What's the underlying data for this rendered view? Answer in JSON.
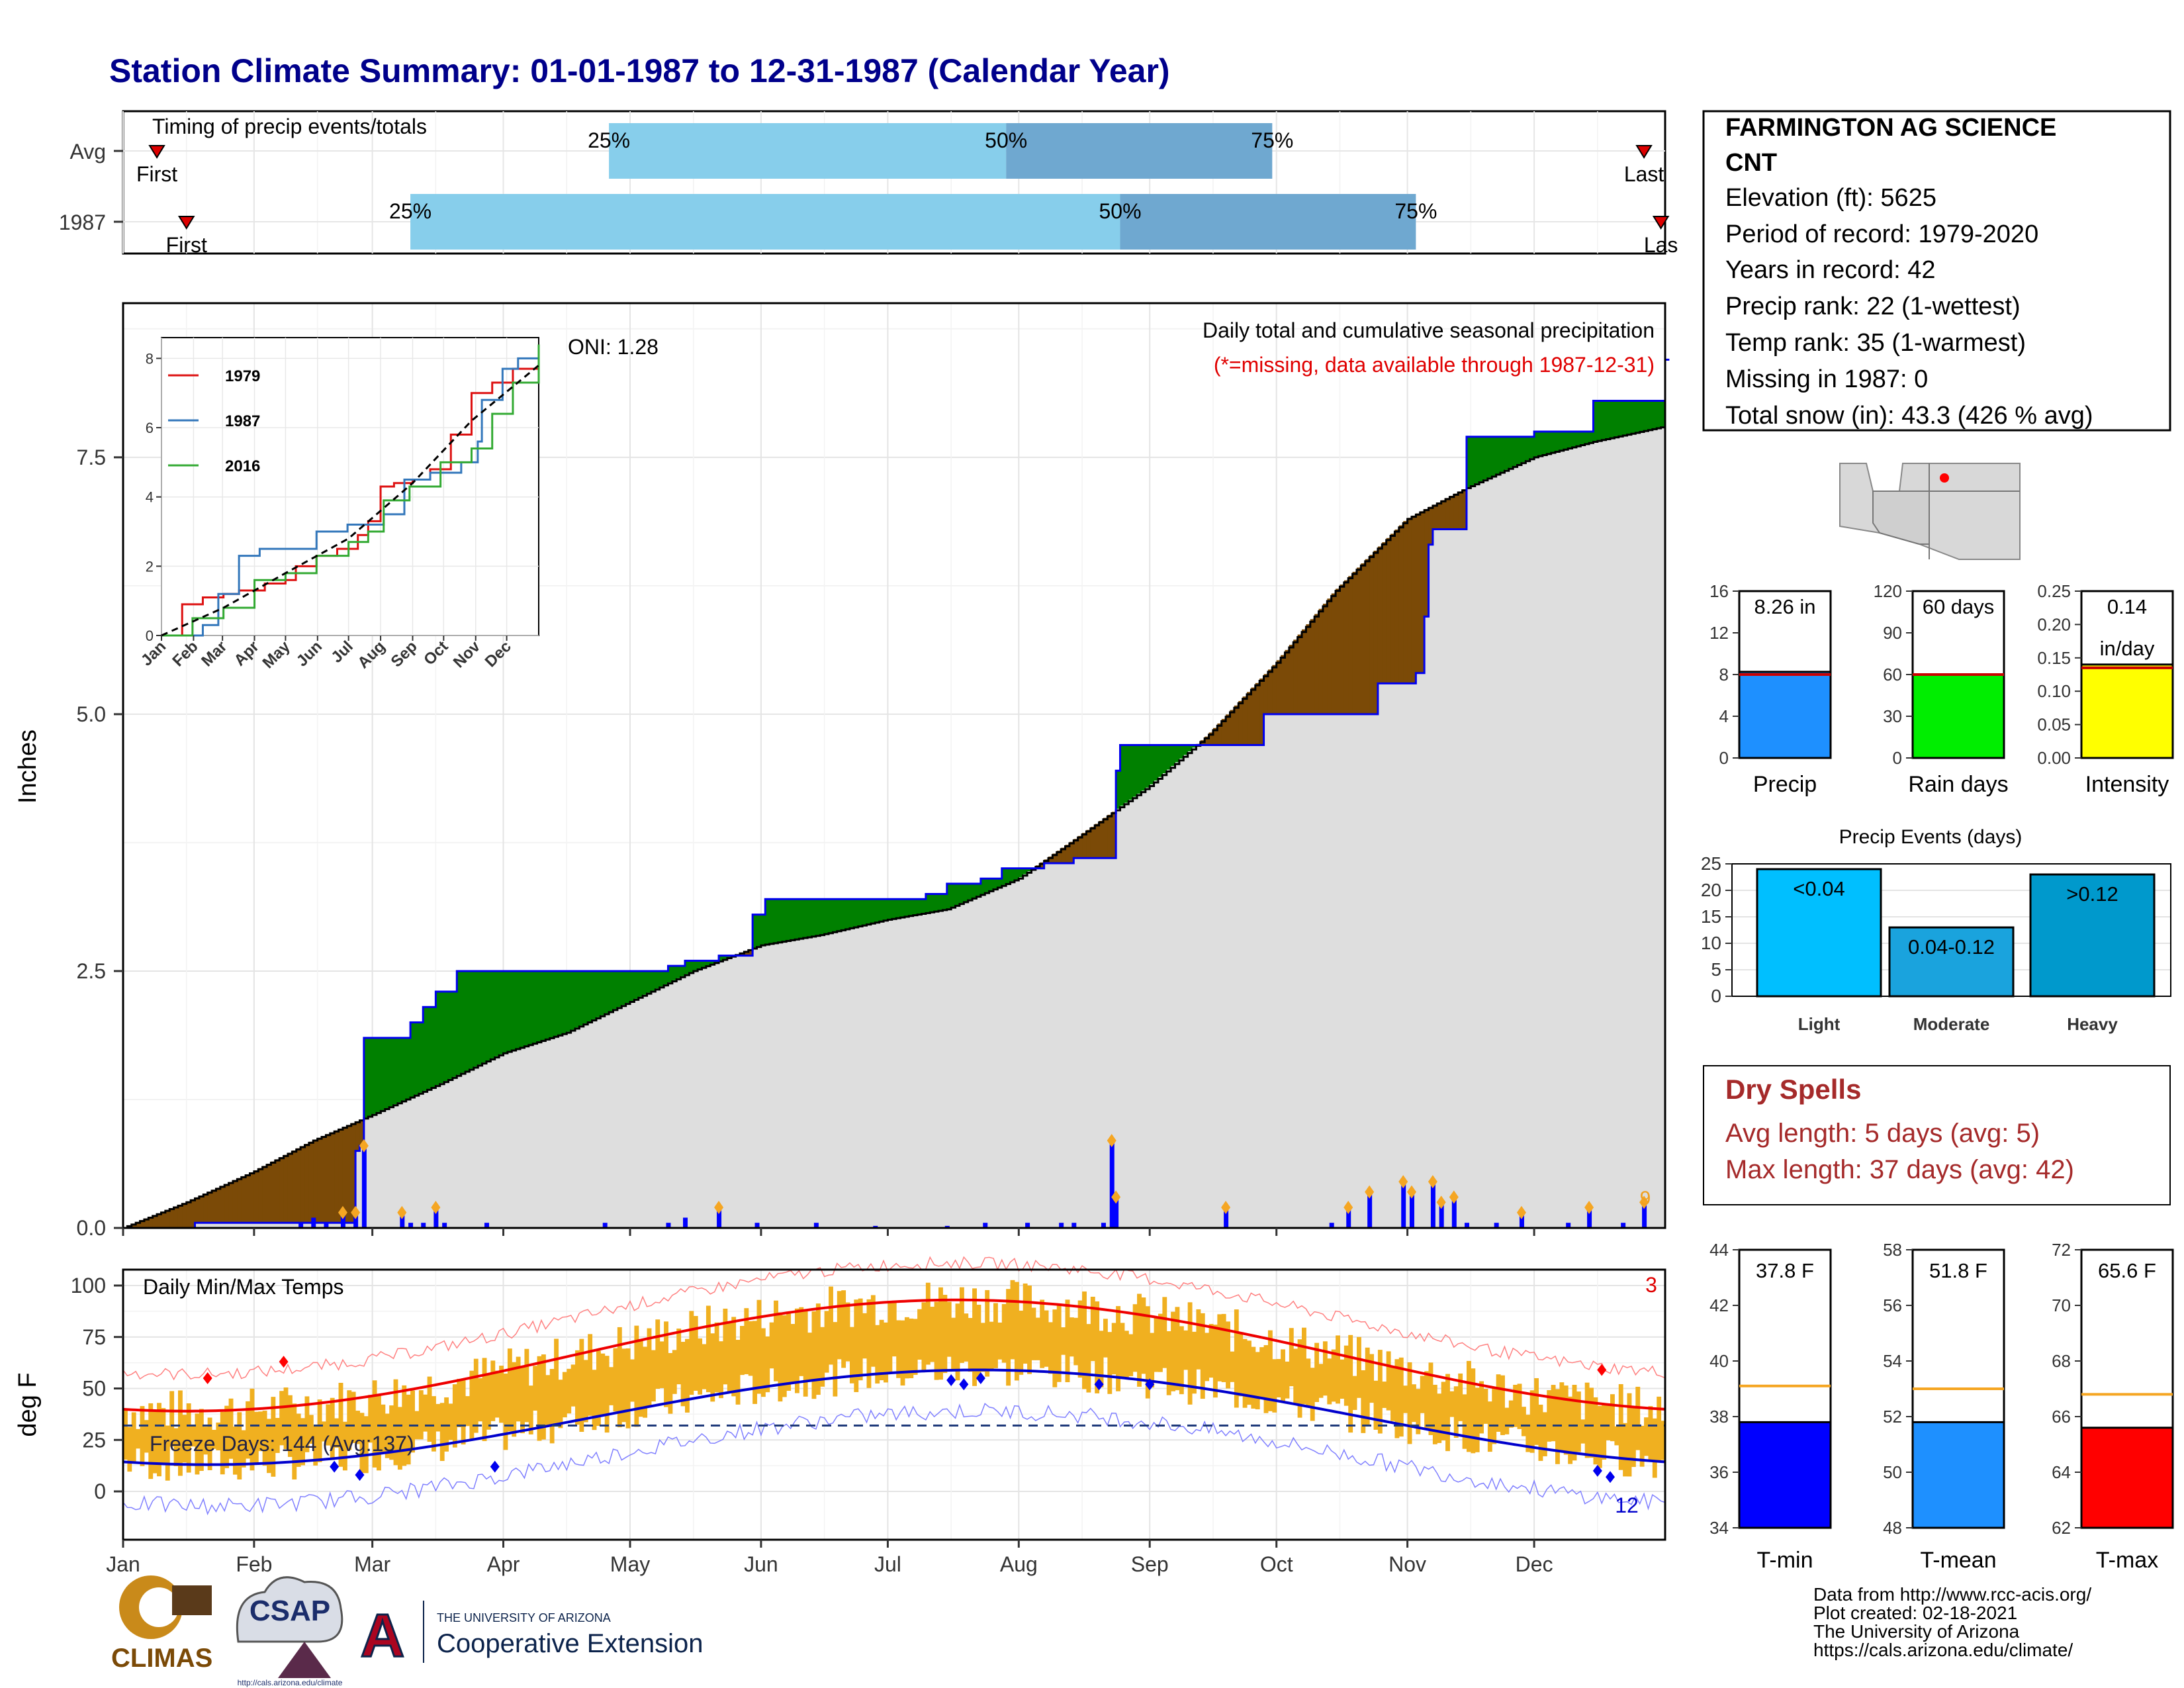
{
  "title": "Station Climate Summary: 01-01-1987 to 12-31-1987 (Calendar Year)",
  "months": [
    "Jan",
    "Feb",
    "Mar",
    "Apr",
    "May",
    "Jun",
    "Jul",
    "Aug",
    "Sep",
    "Oct",
    "Nov",
    "Dec"
  ],
  "timing": {
    "title": "Timing of precip events/totals",
    "rows": [
      {
        "label": "Avg",
        "first_doy": 8,
        "q25_doy": 115,
        "q50_doy": 209,
        "q75_doy": 272,
        "last_doy": 360,
        "first_label": "First",
        "last_label": "Last"
      },
      {
        "label": "1987",
        "first_doy": 15,
        "q25_doy": 68,
        "q50_doy": 236,
        "q75_doy": 306,
        "last_doy": 364,
        "first_label": "First",
        "last_label": "Las"
      }
    ],
    "q25_label": "25%",
    "q50_label": "50%",
    "q75_label": "75%"
  },
  "precip_panel": {
    "ylabel": "Inches",
    "yticks": [
      "0.0",
      "2.5",
      "5.0",
      "7.5"
    ],
    "ymax": 9,
    "oni": "ONI: 1.28",
    "desc": "Daily total and cumulative seasonal precipitation",
    "missing_note": "(*=missing, data available through 1987-12-31)",
    "missing_count": "9",
    "avg_cumulative": {
      "doy": [
        0,
        15,
        31,
        45,
        59,
        75,
        90,
        105,
        120,
        135,
        151,
        165,
        181,
        195,
        212,
        226,
        243,
        257,
        273,
        287,
        304,
        318,
        334,
        348,
        365
      ],
      "inches": [
        0,
        0.25,
        0.55,
        0.85,
        1.1,
        1.4,
        1.7,
        1.9,
        2.2,
        2.5,
        2.75,
        2.85,
        3.0,
        3.1,
        3.4,
        3.8,
        4.3,
        4.8,
        5.5,
        6.2,
        6.9,
        7.2,
        7.5,
        7.65,
        7.8
      ]
    },
    "obs_cumulative": {
      "doy": [
        0,
        17,
        32,
        42,
        55,
        56,
        57,
        66,
        68,
        71,
        74,
        79,
        87,
        90,
        104,
        114,
        125,
        129,
        133,
        135,
        141,
        149,
        151,
        152,
        178,
        190,
        195,
        203,
        208,
        215,
        218,
        225,
        234,
        235,
        236,
        255,
        260,
        270,
        288,
        297,
        306,
        308,
        308,
        309,
        310,
        318,
        334,
        348,
        365
      ],
      "inches": [
        0,
        0.05,
        0.05,
        0.05,
        0.75,
        0.8,
        1.85,
        1.85,
        2.0,
        2.15,
        2.3,
        2.5,
        2.5,
        2.5,
        2.5,
        2.5,
        2.5,
        2.55,
        2.6,
        2.6,
        2.65,
        3.05,
        3.05,
        3.2,
        3.2,
        3.25,
        3.35,
        3.4,
        3.5,
        3.5,
        3.55,
        3.6,
        3.6,
        4.45,
        4.7,
        4.7,
        4.7,
        5.0,
        5.0,
        5.3,
        5.4,
        5.6,
        5.95,
        6.65,
        6.8,
        7.7,
        7.75,
        8.05,
        8.45
      ]
    },
    "daily_bars": {
      "doy": [
        42,
        45,
        48,
        52,
        55,
        57,
        66,
        68,
        71,
        74,
        76,
        86,
        114,
        129,
        133,
        141,
        150,
        164,
        178,
        195,
        204,
        214,
        222,
        225,
        232,
        234,
        235,
        261,
        286,
        290,
        295,
        303,
        305,
        310,
        312,
        315,
        318,
        325,
        331,
        342,
        347,
        355,
        360
      ],
      "inches": [
        0.05,
        0.1,
        0.05,
        0.15,
        0.15,
        0.8,
        0.15,
        0.05,
        0.05,
        0.2,
        0.05,
        0.05,
        0.05,
        0.05,
        0.1,
        0.2,
        0.05,
        0.05,
        0.02,
        0.02,
        0.05,
        0.05,
        0.05,
        0.05,
        0.05,
        0.85,
        0.3,
        0.2,
        0.05,
        0.2,
        0.35,
        0.45,
        0.35,
        0.45,
        0.25,
        0.3,
        0.05,
        0.05,
        0.15,
        0.05,
        0.2,
        0.05,
        0.25
      ]
    }
  },
  "inset": {
    "yticks": [
      "0",
      "2",
      "4",
      "6",
      "8"
    ],
    "legend": [
      {
        "name": "1979",
        "color": "#dd1111"
      },
      {
        "name": "1987",
        "color": "#3377bb"
      },
      {
        "name": "2016",
        "color": "#33aa33"
      }
    ],
    "month_labels": [
      "Jan",
      "Feb",
      "Mar",
      "Apr",
      "May",
      "Jun",
      "Jul",
      "Aug",
      "Sep",
      "Oct",
      "Nov",
      "Dec"
    ]
  },
  "temp_panel": {
    "title": "Daily Min/Max Temps",
    "ylabel": "deg F",
    "yticks": [
      "100",
      "75",
      "50",
      "25",
      "0"
    ],
    "freeze_label": "Freeze Days: 144 (Avg:137)",
    "freeze_temp": 32,
    "count_hot": "3",
    "count_cold": "12"
  },
  "station": {
    "name": "FARMINGTON AG SCIENCE",
    "name2": "CNT",
    "elevation": "Elevation (ft): 5625",
    "period": "Period of record: 1979-2020",
    "years": "Years in record: 42",
    "precip_rank": "Precip rank: 22 (1-wettest)",
    "temp_rank": "Temp rank: 35 (1-warmest)",
    "missing": "Missing in 1987: 0",
    "snow": "Total snow (in): 43.3 (426 % avg)"
  },
  "mini_bars": [
    {
      "label": "Precip",
      "value_text": "8.26 in",
      "value": 8.26,
      "avg": 8.0,
      "ymax": 16,
      "ticks": [
        "16",
        "12",
        "8",
        "4",
        "0"
      ],
      "color": "#1e90ff"
    },
    {
      "label": "Rain days",
      "value_text": "60 days",
      "value": 60,
      "avg": 60,
      "ymax": 120,
      "ticks": [
        "120",
        "90",
        "60",
        "30",
        "0"
      ],
      "color": "#00ee00"
    },
    {
      "label": "Intensity",
      "value_text": "0.14",
      "value_text2": "in/day",
      "value": 0.14,
      "avg": 0.135,
      "ymax": 0.25,
      "ticks": [
        "0.25",
        "0.20",
        "0.15",
        "0.10",
        "0.05",
        "0.00"
      ],
      "color": "#ffff00"
    }
  ],
  "events": {
    "title": "Precip Events (days)",
    "yticks": [
      "25",
      "20",
      "15",
      "10",
      "5",
      "0"
    ],
    "ymax": 25,
    "bars": [
      {
        "category": "Light",
        "label": "<0.04",
        "value": 24,
        "color": "#00bfff"
      },
      {
        "category": "Moderate",
        "label": "0.04-0.12",
        "value": 13,
        "color": "#1aa3dd"
      },
      {
        "category": "Heavy",
        "label": ">0.12",
        "value": 23,
        "color": "#0099cc"
      }
    ]
  },
  "dry_spells": {
    "title": "Dry Spells",
    "avg": "Avg length: 5 days (avg: 5)",
    "max": "Max length: 37 days (avg: 42)"
  },
  "temp_bars": [
    {
      "label": "T-min",
      "value_text": "37.8 F",
      "value": 37.8,
      "avg": 39.1,
      "ymin": 34,
      "ymax": 44,
      "ticks": [
        "44",
        "42",
        "40",
        "38",
        "36",
        "34"
      ],
      "color": "#0000ff"
    },
    {
      "label": "T-mean",
      "value_text": "51.8 F",
      "value": 51.8,
      "avg": 53.0,
      "ymin": 48,
      "ymax": 58,
      "ticks": [
        "58",
        "56",
        "54",
        "52",
        "50",
        "48"
      ],
      "color": "#1e90ff"
    },
    {
      "label": "T-max",
      "value_text": "65.6 F",
      "value": 65.6,
      "avg": 66.8,
      "ymin": 62,
      "ymax": 72,
      "ticks": [
        "72",
        "70",
        "68",
        "66",
        "64",
        "62"
      ],
      "color": "#ff0000"
    }
  ],
  "footer": {
    "l1": "Data from http://www.rcc-acis.org/",
    "l2": "Plot created: 02-18-2021",
    "l3": "The University of Arizona",
    "l4": "https://cals.arizona.edu/climate/"
  },
  "logos": {
    "climas": "CLIMAS",
    "csap": "CSAP",
    "csap_url": "http://cals.arizona.edu/climate",
    "ua_top": "THE UNIVERSITY OF ARIZONA",
    "ua_main": "Cooperative Extension",
    "ua_letter": "A"
  },
  "colors": {
    "title": "#00008b",
    "above": "#008000",
    "below": "#7b4a07",
    "accent_red": "#a52a2a"
  }
}
